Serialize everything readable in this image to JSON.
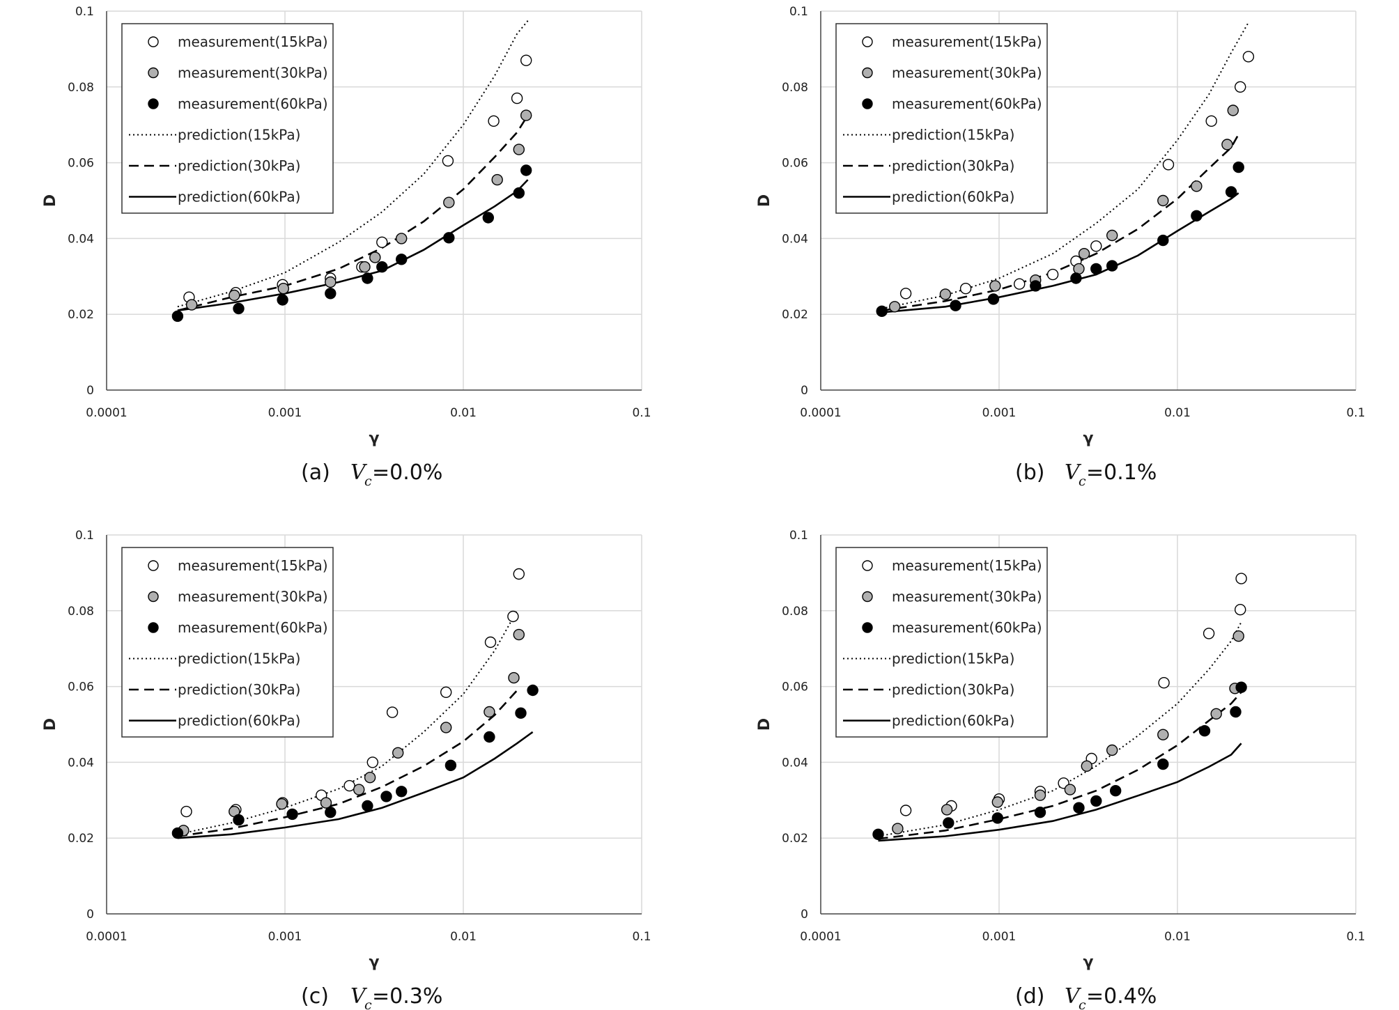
{
  "chart_data": [
    {
      "type": "scatter",
      "caption_label": "(a)",
      "caption_var": "V",
      "caption_sub": "c",
      "caption_value": "=0.0%",
      "xlabel": "γ",
      "ylabel": "D",
      "xscale": "log",
      "xlim": [
        0.0001,
        0.1
      ],
      "ylim": [
        0,
        0.1
      ],
      "xticks": [
        "0.0001",
        "0.001",
        "0.01",
        "0.1"
      ],
      "yticks": [
        "0",
        "0.02",
        "0.04",
        "0.06",
        "0.08",
        "0.1"
      ],
      "grid": true,
      "legend_position": "top-left",
      "series": [
        {
          "name": "measurement(15kPa)",
          "kind": "marker",
          "fill": "#ffffff",
          "x": [
            0.00029,
            0.00053,
            0.00097,
            0.0018,
            0.0027,
            0.0035,
            0.0082,
            0.0148,
            0.02,
            0.0225
          ],
          "y": [
            0.0245,
            0.0257,
            0.0278,
            0.0295,
            0.0325,
            0.039,
            0.0605,
            0.071,
            0.077,
            0.087
          ]
        },
        {
          "name": "measurement(30kPa)",
          "kind": "marker",
          "fill": "#b0b0b0",
          "x": [
            0.0003,
            0.00052,
            0.00098,
            0.0018,
            0.0028,
            0.0032,
            0.0045,
            0.0083,
            0.0155,
            0.0205,
            0.0225
          ],
          "y": [
            0.0225,
            0.025,
            0.0268,
            0.0285,
            0.0325,
            0.035,
            0.04,
            0.0495,
            0.0555,
            0.0635,
            0.0725
          ]
        },
        {
          "name": "measurement(60kPa)",
          "kind": "marker",
          "fill": "#000000",
          "x": [
            0.00025,
            0.00055,
            0.00097,
            0.0018,
            0.0029,
            0.0035,
            0.0045,
            0.0083,
            0.0138,
            0.0205,
            0.0225
          ],
          "y": [
            0.0195,
            0.0215,
            0.0238,
            0.0255,
            0.0295,
            0.0325,
            0.0345,
            0.0402,
            0.0455,
            0.052,
            0.058
          ]
        },
        {
          "name": "prediction(15kPa)",
          "kind": "line",
          "dash": "2,4",
          "x": [
            0.00025,
            0.0005,
            0.001,
            0.002,
            0.0035,
            0.006,
            0.01,
            0.015,
            0.02,
            0.0235
          ],
          "y": [
            0.022,
            0.026,
            0.031,
            0.039,
            0.047,
            0.057,
            0.07,
            0.083,
            0.094,
            0.098
          ]
        },
        {
          "name": "prediction(30kPa)",
          "kind": "line",
          "dash": "14,8",
          "x": [
            0.00025,
            0.0005,
            0.001,
            0.002,
            0.0035,
            0.006,
            0.01,
            0.015,
            0.02,
            0.023
          ],
          "y": [
            0.021,
            0.0245,
            0.0275,
            0.032,
            0.0375,
            0.0445,
            0.053,
            0.0615,
            0.068,
            0.0725
          ]
        },
        {
          "name": "prediction(60kPa)",
          "kind": "line",
          "dash": "",
          "x": [
            0.00025,
            0.0005,
            0.001,
            0.002,
            0.0035,
            0.006,
            0.01,
            0.015,
            0.02,
            0.023
          ],
          "y": [
            0.021,
            0.023,
            0.0255,
            0.0285,
            0.0315,
            0.037,
            0.0435,
            0.0485,
            0.0525,
            0.0555
          ]
        }
      ]
    },
    {
      "type": "scatter",
      "caption_label": "(b)",
      "caption_var": "V",
      "caption_sub": "c",
      "caption_value": "=0.1%",
      "xlabel": "γ",
      "ylabel": "D",
      "xscale": "log",
      "xlim": [
        0.0001,
        0.1
      ],
      "ylim": [
        0,
        0.1
      ],
      "xticks": [
        "0.0001",
        "0.001",
        "0.01",
        "0.1"
      ],
      "yticks": [
        "0",
        "0.02",
        "0.04",
        "0.06",
        "0.08",
        "0.1"
      ],
      "grid": true,
      "legend_position": "top-left",
      "series": [
        {
          "name": "measurement(15kPa)",
          "kind": "marker",
          "fill": "#ffffff",
          "x": [
            0.0003,
            0.00065,
            0.0013,
            0.002,
            0.0027,
            0.0035,
            0.0089,
            0.0155,
            0.0225,
            0.025
          ],
          "y": [
            0.0255,
            0.0268,
            0.028,
            0.0305,
            0.034,
            0.038,
            0.0595,
            0.071,
            0.08,
            0.088
          ]
        },
        {
          "name": "measurement(30kPa)",
          "kind": "marker",
          "fill": "#b0b0b0",
          "x": [
            0.00026,
            0.0005,
            0.00095,
            0.0016,
            0.0028,
            0.003,
            0.0043,
            0.0083,
            0.0128,
            0.019,
            0.0205
          ],
          "y": [
            0.022,
            0.0253,
            0.0275,
            0.029,
            0.032,
            0.036,
            0.0408,
            0.05,
            0.0538,
            0.0648,
            0.0738
          ]
        },
        {
          "name": "measurement(60kPa)",
          "kind": "marker",
          "fill": "#000000",
          "x": [
            0.00022,
            0.00057,
            0.00093,
            0.0016,
            0.0027,
            0.0035,
            0.0043,
            0.0083,
            0.0128,
            0.02,
            0.022
          ],
          "y": [
            0.0208,
            0.0223,
            0.024,
            0.0275,
            0.0295,
            0.032,
            0.0328,
            0.0395,
            0.046,
            0.0523,
            0.0588
          ]
        },
        {
          "name": "prediction(15kPa)",
          "kind": "line",
          "dash": "2,4",
          "x": [
            0.00022,
            0.0005,
            0.001,
            0.002,
            0.0035,
            0.006,
            0.01,
            0.015,
            0.02,
            0.025
          ],
          "y": [
            0.0215,
            0.025,
            0.0295,
            0.036,
            0.044,
            0.053,
            0.066,
            0.078,
            0.089,
            0.097
          ]
        },
        {
          "name": "prediction(30kPa)",
          "kind": "line",
          "dash": "14,8",
          "x": [
            0.00022,
            0.0005,
            0.001,
            0.002,
            0.0035,
            0.006,
            0.01,
            0.015,
            0.02,
            0.022
          ],
          "y": [
            0.021,
            0.0235,
            0.0265,
            0.031,
            0.036,
            0.0425,
            0.0505,
            0.0585,
            0.064,
            0.0675
          ]
        },
        {
          "name": "prediction(60kPa)",
          "kind": "line",
          "dash": "",
          "x": [
            0.00022,
            0.0005,
            0.001,
            0.002,
            0.0035,
            0.006,
            0.01,
            0.015,
            0.02,
            0.022
          ],
          "y": [
            0.0205,
            0.022,
            0.0245,
            0.0275,
            0.0305,
            0.0355,
            0.042,
            0.047,
            0.0505,
            0.052
          ]
        }
      ]
    },
    {
      "type": "scatter",
      "caption_label": "(c)",
      "caption_var": "V",
      "caption_sub": "c",
      "caption_value": "=0.3%",
      "xlabel": "γ",
      "ylabel": "D",
      "xscale": "log",
      "xlim": [
        0.0001,
        0.1
      ],
      "ylim": [
        0,
        0.1
      ],
      "xticks": [
        "0.0001",
        "0.001",
        "0.01",
        "0.1"
      ],
      "yticks": [
        "0",
        "0.02",
        "0.04",
        "0.06",
        "0.08",
        "0.1"
      ],
      "grid": true,
      "legend_position": "top-left",
      "series": [
        {
          "name": "measurement(15kPa)",
          "kind": "marker",
          "fill": "#ffffff",
          "x": [
            0.00028,
            0.00053,
            0.00097,
            0.0016,
            0.0023,
            0.0031,
            0.004,
            0.008,
            0.0142,
            0.019,
            0.0205
          ],
          "y": [
            0.027,
            0.0275,
            0.0293,
            0.0313,
            0.0338,
            0.04,
            0.0532,
            0.0585,
            0.0717,
            0.0785,
            0.0897
          ]
        },
        {
          "name": "measurement(30kPa)",
          "kind": "marker",
          "fill": "#b0b0b0",
          "x": [
            0.00027,
            0.00052,
            0.00096,
            0.0017,
            0.0026,
            0.003,
            0.0043,
            0.008,
            0.014,
            0.0192,
            0.0205
          ],
          "y": [
            0.022,
            0.027,
            0.029,
            0.0293,
            0.0328,
            0.036,
            0.0425,
            0.0492,
            0.0533,
            0.0623,
            0.0737
          ]
        },
        {
          "name": "measurement(60kPa)",
          "kind": "marker",
          "fill": "#000000",
          "x": [
            0.00025,
            0.00055,
            0.0011,
            0.0018,
            0.0029,
            0.0037,
            0.0045,
            0.0085,
            0.014,
            0.021,
            0.0245
          ],
          "y": [
            0.0213,
            0.0248,
            0.0263,
            0.0268,
            0.0285,
            0.031,
            0.0323,
            0.0392,
            0.0467,
            0.053,
            0.059
          ]
        },
        {
          "name": "prediction(15kPa)",
          "kind": "line",
          "dash": "2,4",
          "x": [
            0.00025,
            0.0005,
            0.001,
            0.002,
            0.0035,
            0.006,
            0.01,
            0.015,
            0.02
          ],
          "y": [
            0.021,
            0.024,
            0.028,
            0.033,
            0.039,
            0.048,
            0.058,
            0.0695,
            0.08
          ]
        },
        {
          "name": "prediction(30kPa)",
          "kind": "line",
          "dash": "14,8",
          "x": [
            0.00025,
            0.0005,
            0.001,
            0.002,
            0.0035,
            0.006,
            0.01,
            0.015,
            0.0205
          ],
          "y": [
            0.0205,
            0.0225,
            0.0255,
            0.029,
            0.0335,
            0.039,
            0.0455,
            0.0525,
            0.0595
          ]
        },
        {
          "name": "prediction(60kPa)",
          "kind": "line",
          "dash": "",
          "x": [
            0.00025,
            0.0005,
            0.001,
            0.002,
            0.0035,
            0.006,
            0.01,
            0.015,
            0.02,
            0.0245
          ],
          "y": [
            0.02,
            0.021,
            0.0228,
            0.025,
            0.028,
            0.032,
            0.036,
            0.041,
            0.045,
            0.048
          ]
        }
      ]
    },
    {
      "type": "scatter",
      "caption_label": "(d)",
      "caption_var": "V",
      "caption_sub": "c",
      "caption_value": "=0.4%",
      "xlabel": "γ",
      "ylabel": "D",
      "xscale": "log",
      "xlim": [
        0.0001,
        0.1
      ],
      "ylim": [
        0,
        0.1
      ],
      "xticks": [
        "0.0001",
        "0.001",
        "0.01",
        "0.1"
      ],
      "yticks": [
        "0",
        "0.02",
        "0.04",
        "0.06",
        "0.08",
        "0.1"
      ],
      "grid": true,
      "legend_position": "top-left",
      "series": [
        {
          "name": "measurement(15kPa)",
          "kind": "marker",
          "fill": "#ffffff",
          "x": [
            0.0003,
            0.00054,
            0.001,
            0.0017,
            0.0023,
            0.0033,
            0.0084,
            0.015,
            0.0225,
            0.0228
          ],
          "y": [
            0.0273,
            0.0285,
            0.0303,
            0.0323,
            0.0345,
            0.041,
            0.061,
            0.074,
            0.0803,
            0.0885
          ]
        },
        {
          "name": "measurement(30kPa)",
          "kind": "marker",
          "fill": "#b0b0b0",
          "x": [
            0.00027,
            0.00051,
            0.00098,
            0.0017,
            0.0025,
            0.0031,
            0.0043,
            0.0083,
            0.0165,
            0.021,
            0.022
          ],
          "y": [
            0.0225,
            0.0275,
            0.0295,
            0.0313,
            0.0328,
            0.039,
            0.0432,
            0.0473,
            0.0528,
            0.0595,
            0.0733
          ]
        },
        {
          "name": "measurement(60kPa)",
          "kind": "marker",
          "fill": "#000000",
          "x": [
            0.00021,
            0.00052,
            0.00098,
            0.0017,
            0.0028,
            0.0035,
            0.0045,
            0.0083,
            0.0142,
            0.0212,
            0.0228
          ],
          "y": [
            0.021,
            0.024,
            0.0253,
            0.0268,
            0.028,
            0.0298,
            0.0325,
            0.0395,
            0.0483,
            0.0533,
            0.0598
          ]
        },
        {
          "name": "prediction(15kPa)",
          "kind": "line",
          "dash": "2,4",
          "x": [
            0.00021,
            0.0005,
            0.001,
            0.002,
            0.0035,
            0.006,
            0.01,
            0.015,
            0.02,
            0.0228
          ],
          "y": [
            0.0205,
            0.0235,
            0.0275,
            0.0325,
            0.039,
            0.047,
            0.0555,
            0.0645,
            0.072,
            0.077
          ]
        },
        {
          "name": "prediction(30kPa)",
          "kind": "line",
          "dash": "14,8",
          "x": [
            0.00021,
            0.0005,
            0.001,
            0.002,
            0.0035,
            0.006,
            0.01,
            0.015,
            0.02,
            0.0228
          ],
          "y": [
            0.0198,
            0.022,
            0.025,
            0.0285,
            0.0325,
            0.038,
            0.0445,
            0.051,
            0.0555,
            0.0585
          ]
        },
        {
          "name": "prediction(60kPa)",
          "kind": "line",
          "dash": "",
          "x": [
            0.00021,
            0.0005,
            0.001,
            0.002,
            0.0035,
            0.006,
            0.01,
            0.015,
            0.02,
            0.0228
          ],
          "y": [
            0.0193,
            0.0205,
            0.0222,
            0.0245,
            0.0275,
            0.0312,
            0.0348,
            0.0388,
            0.042,
            0.045
          ]
        }
      ]
    }
  ]
}
